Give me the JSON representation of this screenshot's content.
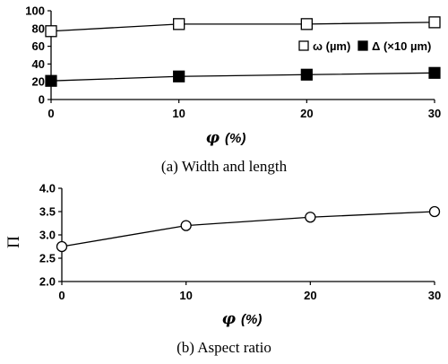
{
  "chart_data": [
    {
      "type": "line",
      "x": [
        0,
        10,
        20,
        30
      ],
      "xlim": [
        0,
        30
      ],
      "ylim": [
        0,
        100
      ],
      "x_ticks": [
        "0",
        "10",
        "20",
        "30"
      ],
      "y_ticks": [
        "0",
        "20",
        "40",
        "60",
        "80",
        "100"
      ],
      "xlabel_symbol": "φ",
      "xlabel_unit": "(%)",
      "series": [
        {
          "name_symbol": "ω",
          "name_unit": "(µm)",
          "marker": "open-square",
          "values": [
            77,
            85,
            85,
            87
          ]
        },
        {
          "name_symbol": "Δ",
          "name_unit": "(×10 µm)",
          "marker": "filled-square",
          "values": [
            21,
            26,
            28,
            30
          ]
        }
      ],
      "legend_position": "right",
      "caption": "(a) Width and length",
      "grid": false
    },
    {
      "type": "line",
      "x": [
        0,
        10,
        20,
        30
      ],
      "xlim": [
        0,
        30
      ],
      "ylim": [
        2.0,
        4.0
      ],
      "x_ticks": [
        "0",
        "10",
        "20",
        "30"
      ],
      "y_ticks": [
        "2.0",
        "2.5",
        "3.0",
        "3.5",
        "4.0"
      ],
      "xlabel_symbol": "φ",
      "xlabel_unit": "(%)",
      "ylabel": "Π",
      "series": [
        {
          "marker": "open-circle",
          "values": [
            2.75,
            3.2,
            3.38,
            3.5
          ]
        }
      ],
      "caption": "(b) Aspect ratio",
      "grid": false
    }
  ]
}
